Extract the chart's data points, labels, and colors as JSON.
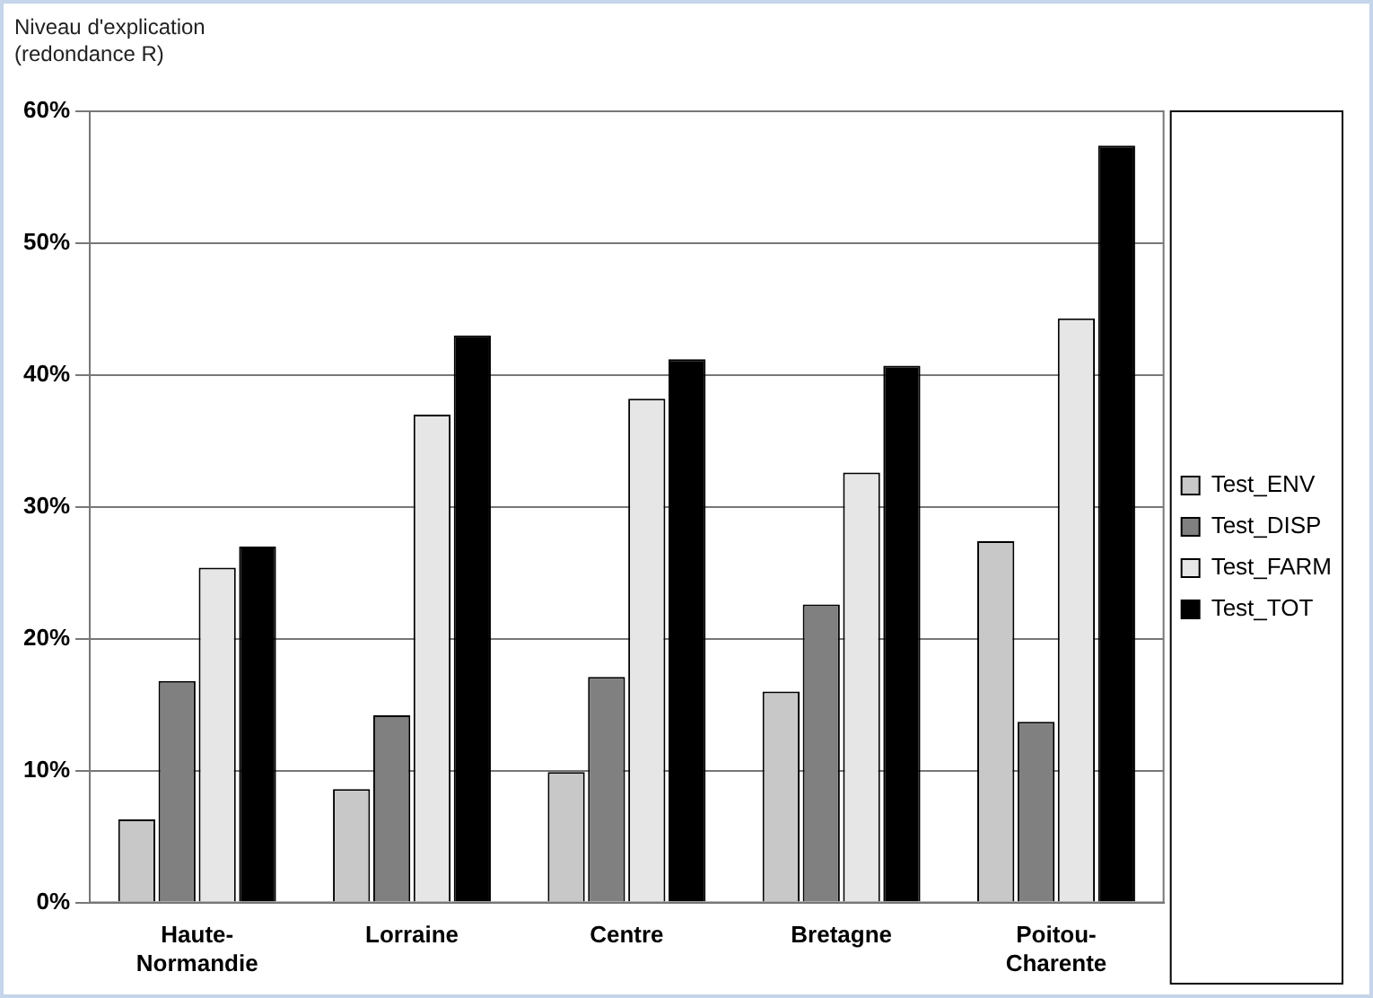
{
  "chart_data": {
    "type": "bar",
    "ylabel": "Niveau d'explication (redondance R)",
    "categories": [
      "Haute-Normandie",
      "Lorraine",
      "Centre",
      "Bretagne",
      "Poitou-Charente"
    ],
    "series": [
      {
        "name": "Test_ENV",
        "color": "#c8c8c8",
        "values": [
          6.3,
          8.6,
          9.9,
          16.0,
          27.4
        ]
      },
      {
        "name": "Test_DISP",
        "color": "#808080",
        "values": [
          16.8,
          14.2,
          17.1,
          22.6,
          13.7
        ]
      },
      {
        "name": "Test_FARM",
        "color": "#e6e6e6",
        "values": [
          25.4,
          37.0,
          38.2,
          32.6,
          44.3
        ]
      },
      {
        "name": "Test_TOT",
        "color": "#000000",
        "values": [
          27.0,
          43.0,
          41.2,
          40.7,
          57.4
        ]
      }
    ],
    "ylim": [
      0,
      60
    ],
    "yticks": [
      {
        "value": 0,
        "label": "0%"
      },
      {
        "value": 10,
        "label": "10%"
      },
      {
        "value": 20,
        "label": "20%"
      },
      {
        "value": 30,
        "label": "30%"
      },
      {
        "value": 40,
        "label": "40%"
      },
      {
        "value": 50,
        "label": "50%"
      },
      {
        "value": 60,
        "label": "60%"
      }
    ],
    "grid": "y",
    "legend": "right"
  }
}
